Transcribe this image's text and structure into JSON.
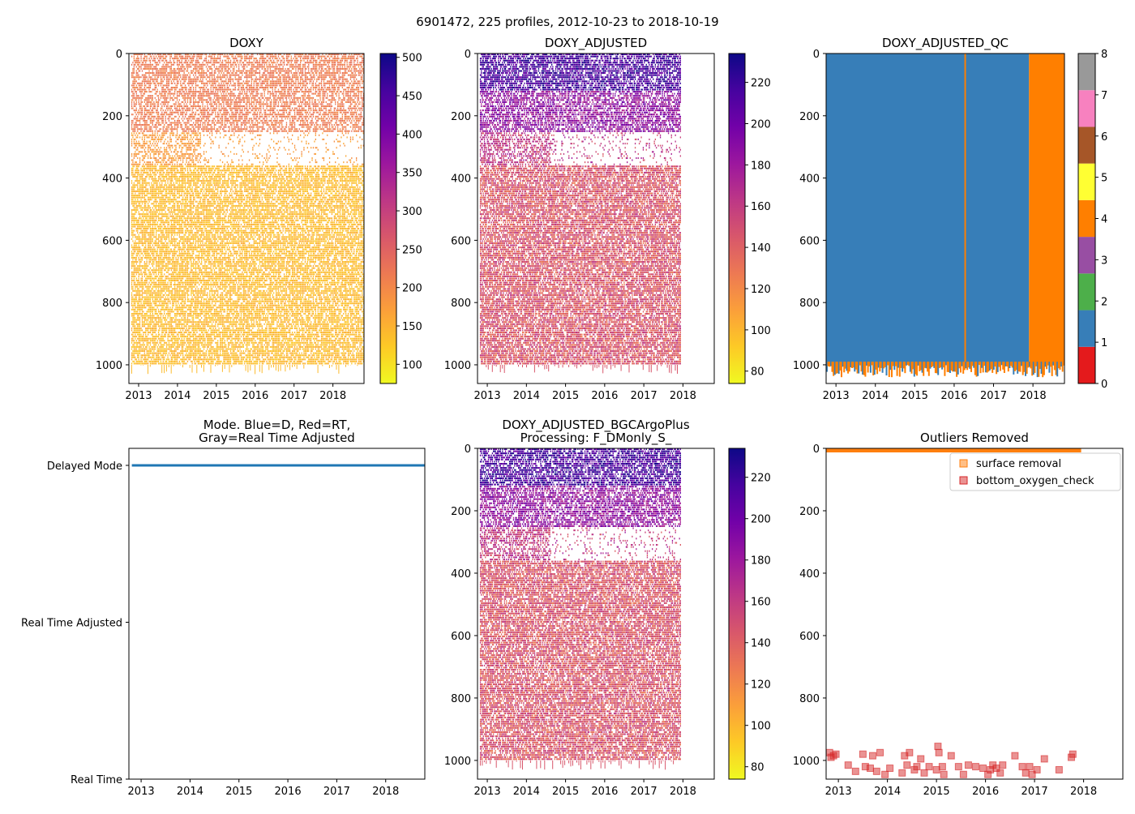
{
  "figure_title": "6901472, 225 profiles, 2012-10-23 to 2018-10-19",
  "colors": {
    "plasma": [
      "#f0f921",
      "#fdca26",
      "#fb9f3a",
      "#ed7953",
      "#d8576b",
      "#bd3786",
      "#9c179e",
      "#7201a8",
      "#46039f",
      "#0d0887"
    ],
    "qc": [
      "#e41a1c",
      "#377eb8",
      "#4daf4a",
      "#984ea3",
      "#ff7f00",
      "#ffff33",
      "#a65628",
      "#f781bf",
      "#999999"
    ],
    "mode_line": "#1f77b4",
    "surface_removal": "#ff7f0e",
    "bottom_oxygen_check": "#d62728",
    "axis": "#000000"
  },
  "chart_data": [
    {
      "id": "doxy",
      "type": "heatmap",
      "title": "DOXY",
      "xlim": [
        2012.75,
        2018.8
      ],
      "ylim": [
        1060,
        0
      ],
      "x_ticks": [
        2013,
        2014,
        2015,
        2016,
        2017,
        2018
      ],
      "y_ticks": [
        0,
        200,
        400,
        600,
        800,
        1000
      ],
      "profile_range": [
        2012.81,
        2018.8
      ],
      "colorbar": {
        "range": [
          75,
          505
        ],
        "ticks": [
          100,
          150,
          200,
          250,
          300,
          350,
          400,
          450,
          500
        ],
        "cmap": "plasma"
      },
      "bands": [
        {
          "depth": [
            0,
            250
          ],
          "value": 215,
          "density": 0.65
        },
        {
          "depth": [
            250,
            360
          ],
          "value": 175,
          "density": 0.55,
          "gap_after": 2014.6
        },
        {
          "depth": [
            360,
            1000
          ],
          "value": 140,
          "density": 0.75
        }
      ]
    },
    {
      "id": "doxy_adjusted",
      "type": "heatmap",
      "title": "DOXY_ADJUSTED",
      "xlim": [
        2012.75,
        2018.8
      ],
      "ylim": [
        1060,
        0
      ],
      "x_ticks": [
        2013,
        2014,
        2015,
        2016,
        2017,
        2018
      ],
      "y_ticks": [
        0,
        200,
        400,
        600,
        800,
        1000
      ],
      "profile_range": [
        2012.81,
        2017.95
      ],
      "colorbar": {
        "range": [
          74,
          234
        ],
        "ticks": [
          80,
          100,
          120,
          140,
          160,
          180,
          200,
          220
        ],
        "cmap": "plasma"
      },
      "bands": [
        {
          "depth": [
            0,
            120
          ],
          "value": 215,
          "density": 0.7
        },
        {
          "depth": [
            120,
            250
          ],
          "value": 185,
          "density": 0.65
        },
        {
          "depth": [
            250,
            360
          ],
          "value": 160,
          "density": 0.55,
          "gap_after": 2014.6
        },
        {
          "depth": [
            360,
            1000
          ],
          "value": 145,
          "density": 0.75
        }
      ]
    },
    {
      "id": "doxy_adjusted_qc",
      "type": "heatmap",
      "title": "DOXY_ADJUSTED_QC",
      "xlim": [
        2012.75,
        2018.8
      ],
      "ylim": [
        1060,
        0
      ],
      "x_ticks": [
        2013,
        2014,
        2015,
        2016,
        2017,
        2018
      ],
      "y_ticks": [
        0,
        200,
        400,
        600,
        800,
        1000
      ],
      "colorbar": {
        "range": [
          0,
          8
        ],
        "ticks": [
          0,
          1,
          2,
          3,
          4,
          5,
          6,
          7,
          8
        ],
        "cmap": "qc"
      },
      "segments": [
        {
          "x": [
            2012.75,
            2017.9
          ],
          "qc": 1
        },
        {
          "x": [
            2016.26,
            2016.3
          ],
          "qc": 4
        },
        {
          "x": [
            2017.9,
            2018.8
          ],
          "qc": 4
        }
      ]
    },
    {
      "id": "mode",
      "type": "line",
      "title": "Mode. Blue=D, Red=RT,\nGray=Real Time Adjusted",
      "xlim": [
        2012.75,
        2018.8
      ],
      "x_ticks": [
        2013,
        2014,
        2015,
        2016,
        2017,
        2018
      ],
      "y_categories": [
        "Real Time",
        "Real Time Adjusted",
        "Delayed Mode"
      ],
      "series": [
        {
          "name": "Delayed Mode",
          "x": [
            2012.81,
            2018.8
          ],
          "y": [
            2,
            2
          ]
        }
      ]
    },
    {
      "id": "doxy_bgcargoplus",
      "type": "heatmap",
      "title": "DOXY_ADJUSTED_BGCArgoPlus\nProcessing: F_DMonly_S_",
      "xlim": [
        2012.75,
        2018.8
      ],
      "ylim": [
        1060,
        0
      ],
      "x_ticks": [
        2013,
        2014,
        2015,
        2016,
        2017,
        2018
      ],
      "y_ticks": [
        0,
        200,
        400,
        600,
        800,
        1000
      ],
      "profile_range": [
        2012.81,
        2017.95
      ],
      "colorbar": {
        "range": [
          74,
          234
        ],
        "ticks": [
          80,
          100,
          120,
          140,
          160,
          180,
          200,
          220
        ],
        "cmap": "plasma"
      },
      "bands": [
        {
          "depth": [
            0,
            120
          ],
          "value": 215,
          "density": 0.7
        },
        {
          "depth": [
            120,
            250
          ],
          "value": 185,
          "density": 0.65
        },
        {
          "depth": [
            250,
            360
          ],
          "value": 160,
          "density": 0.55,
          "gap_after": 2014.6
        },
        {
          "depth": [
            360,
            1000
          ],
          "value": 145,
          "density": 0.75
        }
      ]
    },
    {
      "id": "outliers",
      "type": "scatter",
      "title": "Outliers Removed",
      "xlim": [
        2012.75,
        2018.8
      ],
      "ylim": [
        1060,
        0
      ],
      "x_ticks": [
        2013,
        2014,
        2015,
        2016,
        2017,
        2018
      ],
      "y_ticks": [
        0,
        200,
        400,
        600,
        800,
        1000
      ],
      "legend": {
        "placement": "top-right",
        "entries": [
          "surface removal",
          "bottom_oxygen_check"
        ]
      },
      "series": [
        {
          "name": "surface removal",
          "x_range": [
            2012.75,
            2017.95
          ],
          "depth": [
            0,
            8
          ]
        },
        {
          "name": "bottom_oxygen_check",
          "points": [
            [
              2012.82,
              975
            ],
            [
              2012.85,
              990
            ],
            [
              2012.9,
              985
            ],
            [
              2012.95,
              980
            ],
            [
              2013.2,
              1015
            ],
            [
              2013.35,
              1035
            ],
            [
              2013.5,
              980
            ],
            [
              2013.55,
              1020
            ],
            [
              2013.65,
              1025
            ],
            [
              2013.7,
              985
            ],
            [
              2013.78,
              1035
            ],
            [
              2013.85,
              975
            ],
            [
              2013.95,
              1045
            ],
            [
              2014.05,
              1025
            ],
            [
              2014.3,
              1040
            ],
            [
              2014.35,
              985
            ],
            [
              2014.4,
              1015
            ],
            [
              2014.45,
              975
            ],
            [
              2014.55,
              1030
            ],
            [
              2014.6,
              1020
            ],
            [
              2014.68,
              995
            ],
            [
              2014.75,
              1040
            ],
            [
              2014.85,
              1020
            ],
            [
              2015.0,
              1030
            ],
            [
              2015.03,
              955
            ],
            [
              2015.05,
              975
            ],
            [
              2015.12,
              1020
            ],
            [
              2015.15,
              1045
            ],
            [
              2015.3,
              985
            ],
            [
              2015.45,
              1020
            ],
            [
              2015.55,
              1045
            ],
            [
              2015.65,
              1015
            ],
            [
              2015.8,
              1020
            ],
            [
              2015.95,
              1025
            ],
            [
              2016.05,
              1045
            ],
            [
              2016.1,
              1030
            ],
            [
              2016.15,
              1015
            ],
            [
              2016.22,
              1025
            ],
            [
              2016.3,
              1040
            ],
            [
              2016.35,
              1015
            ],
            [
              2016.6,
              985
            ],
            [
              2016.75,
              1020
            ],
            [
              2016.82,
              1040
            ],
            [
              2016.9,
              1020
            ],
            [
              2016.95,
              1045
            ],
            [
              2017.05,
              1030
            ],
            [
              2017.2,
              995
            ],
            [
              2017.5,
              1030
            ],
            [
              2017.75,
              990
            ],
            [
              2017.78,
              980
            ]
          ]
        }
      ]
    }
  ]
}
